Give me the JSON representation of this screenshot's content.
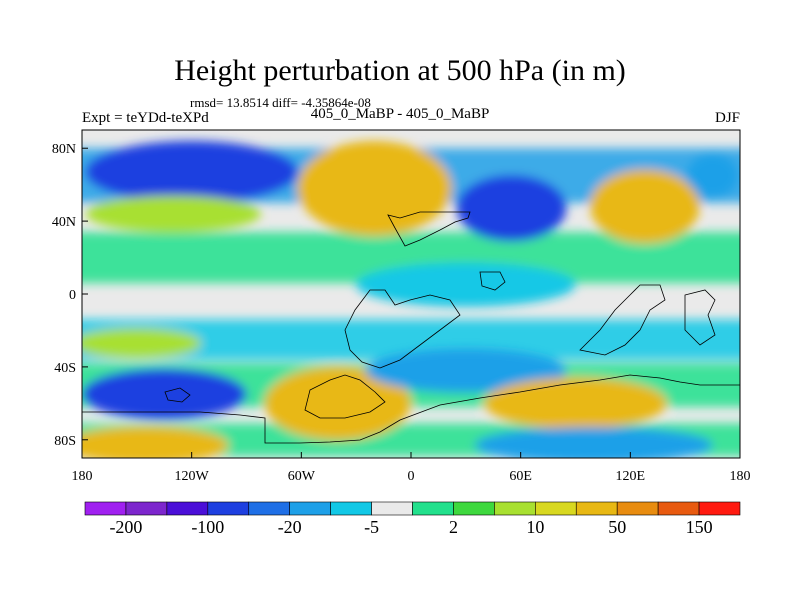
{
  "header": {
    "title": "Height perturbation at 500 hPa (in m)",
    "stats": "rmsd= 13.8514 diff= -4.35864e-08",
    "experiment": "Expt = teYDd-teXPd",
    "case": "405_0_MaBP - 405_0_MaBP",
    "season": "DJF"
  },
  "chart_data": {
    "type": "heatmap",
    "title": "Height perturbation at 500 hPa (in m)",
    "xlabel": "",
    "ylabel": "",
    "xlim": [
      -180,
      180
    ],
    "ylim": [
      -90,
      90
    ],
    "x_ticks": [
      "180",
      "120W",
      "60W",
      "0",
      "60E",
      "120E",
      "180"
    ],
    "y_ticks": [
      "80N",
      "40N",
      "0",
      "40S",
      "80S"
    ],
    "colorbar": {
      "levels": [
        "-200",
        "-100",
        "-20",
        "-5",
        "2",
        "10",
        "50",
        "150"
      ],
      "colors": [
        "#a020f0",
        "#7d26cd",
        "#4b0fd8",
        "#1e3fe0",
        "#1f6fe6",
        "#1ea0e8",
        "#12c8e6",
        "#eaeaea",
        "#22e08c",
        "#3ed83e",
        "#a8e030",
        "#d8d820",
        "#e8b814",
        "#e88c10",
        "#e85a10",
        "#ff1a10"
      ]
    },
    "field_blobs": [
      {
        "lon": -120,
        "lat": 67,
        "rx": 58,
        "ry": 17,
        "level": "-100"
      },
      {
        "lon": -130,
        "lat": 44,
        "rx": 48,
        "ry": 10,
        "level": "10"
      },
      {
        "lon": -20,
        "lat": 58,
        "rx": 42,
        "ry": 26,
        "level": "50"
      },
      {
        "lon": 55,
        "lat": 47,
        "rx": 30,
        "ry": 18,
        "level": "-100"
      },
      {
        "lon": 128,
        "lat": 48,
        "rx": 30,
        "ry": 20,
        "level": "50"
      },
      {
        "lon": 165,
        "lat": 65,
        "rx": 14,
        "ry": 12,
        "level": "-20"
      },
      {
        "lon": -150,
        "lat": -27,
        "rx": 35,
        "ry": 8,
        "level": "10"
      },
      {
        "lon": -135,
        "lat": -55,
        "rx": 45,
        "ry": 14,
        "level": "-100"
      },
      {
        "lon": -145,
        "lat": -83,
        "rx": 45,
        "ry": 10,
        "level": "50"
      },
      {
        "lon": -40,
        "lat": -60,
        "rx": 40,
        "ry": 20,
        "level": "50"
      },
      {
        "lon": 30,
        "lat": -42,
        "rx": 55,
        "ry": 12,
        "level": "-20"
      },
      {
        "lon": 90,
        "lat": -60,
        "rx": 50,
        "ry": 14,
        "level": "50"
      },
      {
        "lon": 100,
        "lat": -83,
        "rx": 65,
        "ry": 10,
        "level": "-20"
      },
      {
        "lon": 30,
        "lat": 5,
        "rx": 60,
        "ry": 12,
        "level": "-5"
      }
    ]
  }
}
